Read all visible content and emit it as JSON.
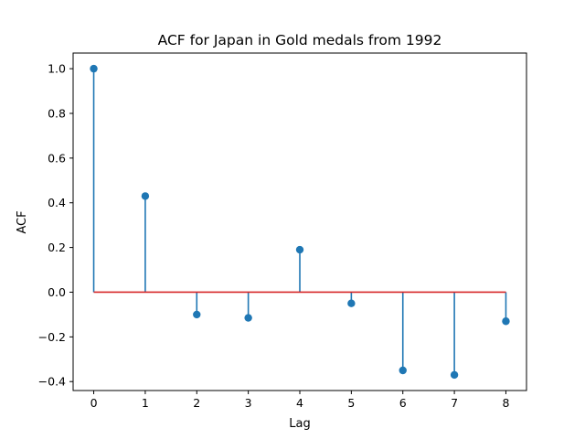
{
  "chart_data": {
    "type": "stem",
    "title": "ACF for Japan in Gold medals from 1992",
    "xlabel": "Lag",
    "ylabel": "ACF",
    "x": [
      0,
      1,
      2,
      3,
      4,
      5,
      6,
      7,
      8
    ],
    "values": [
      1.0,
      0.43,
      -0.1,
      -0.115,
      0.19,
      -0.05,
      -0.35,
      -0.37,
      -0.13
    ],
    "xlim": [
      -0.4,
      8.4
    ],
    "ylim": [
      -0.44,
      1.07
    ],
    "xticks": [
      "0",
      "1",
      "2",
      "3",
      "4",
      "5",
      "6",
      "7",
      "8"
    ],
    "yticks": [
      "−0.4",
      "−0.2",
      "0.0",
      "0.2",
      "0.4",
      "0.6",
      "0.8",
      "1.0"
    ],
    "ytick_values": [
      -0.4,
      -0.2,
      0.0,
      0.2,
      0.4,
      0.6,
      0.8,
      1.0
    ],
    "baseline": 0,
    "grid": false,
    "colors": {
      "stem": "#1f77b4",
      "marker": "#1f77b4",
      "baseline": "#d62728"
    }
  }
}
